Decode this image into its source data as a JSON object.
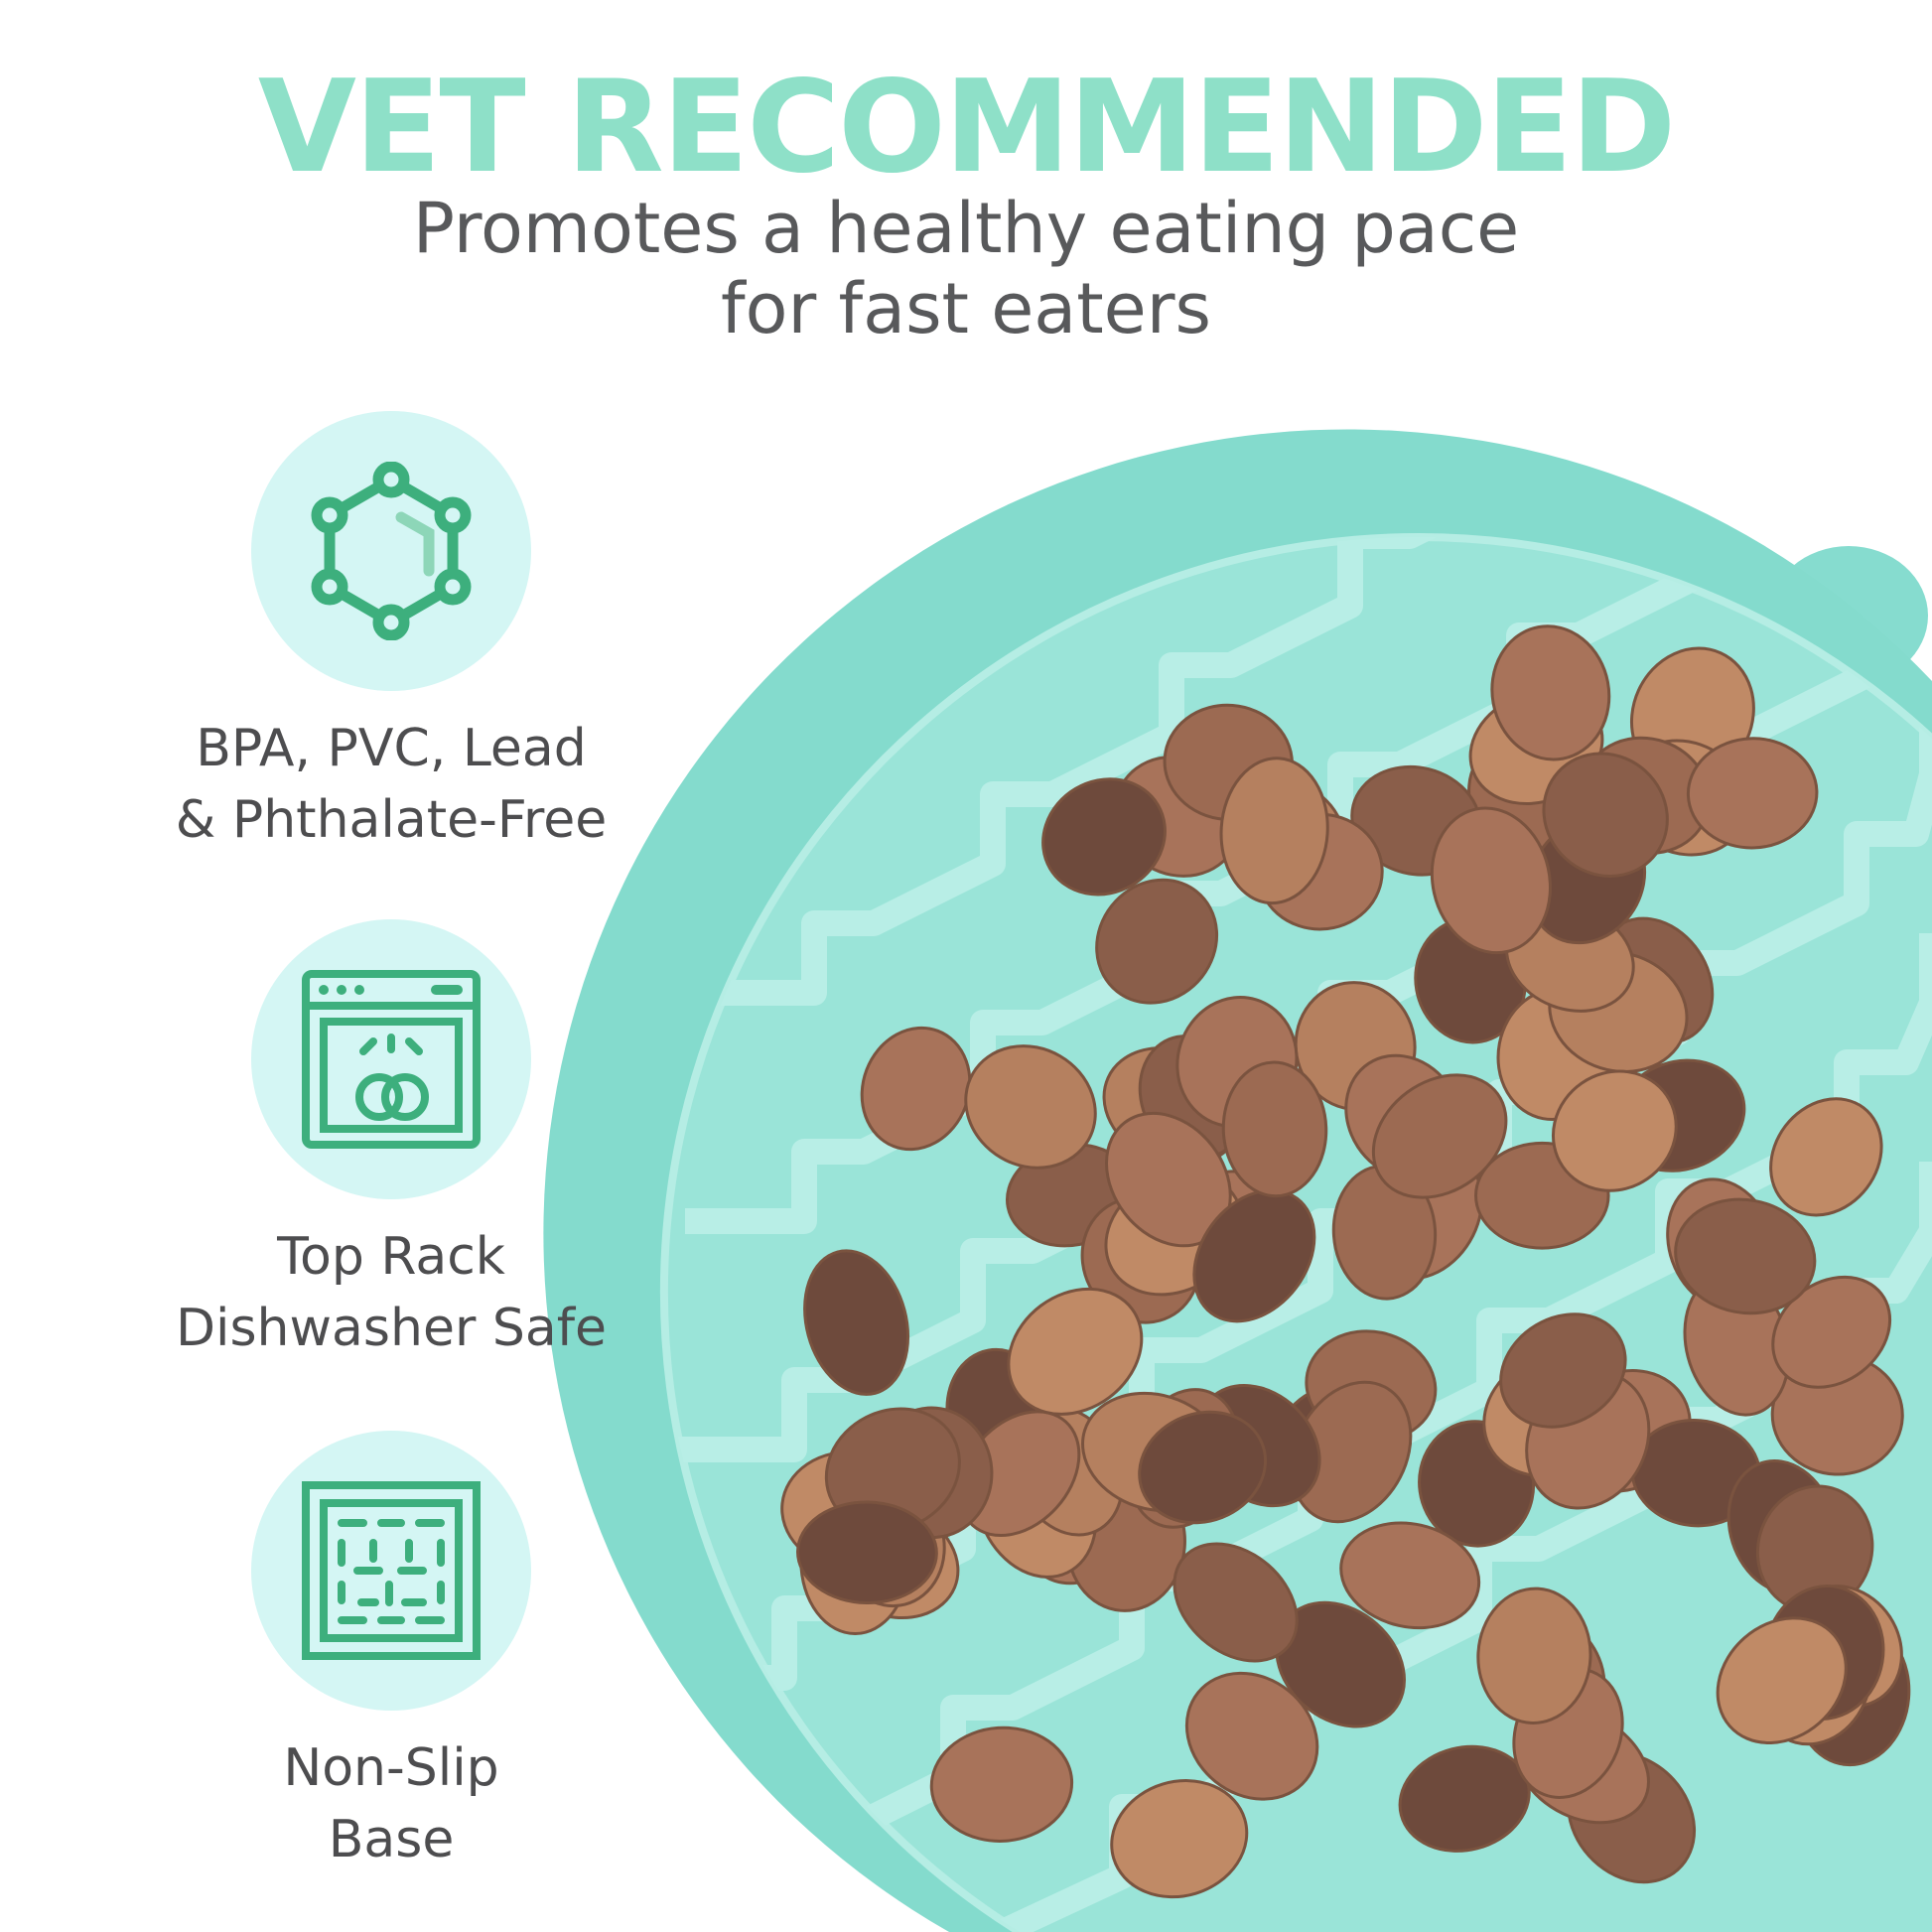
{
  "headline": "VET RECOMMENDED",
  "subheadline": {
    "line1": "Promotes a healthy eating pace",
    "line2": "for fast eaters"
  },
  "features": [
    {
      "icon": "molecule-icon",
      "line1": "BPA, PVC, Lead",
      "line2": "& Phthalate-Free"
    },
    {
      "icon": "dishwasher-icon",
      "line1": "Top Rack",
      "line2": "Dishwasher Safe"
    },
    {
      "icon": "non-slip-grid-icon",
      "line1": "Non-Slip",
      "line2": "Base"
    }
  ],
  "colors": {
    "accent": "#8ee0c8",
    "icon_green": "#3daf7d",
    "icon_bg": "#d4f6f4",
    "text": "#58595b",
    "bowl": "#8fe0d4"
  }
}
